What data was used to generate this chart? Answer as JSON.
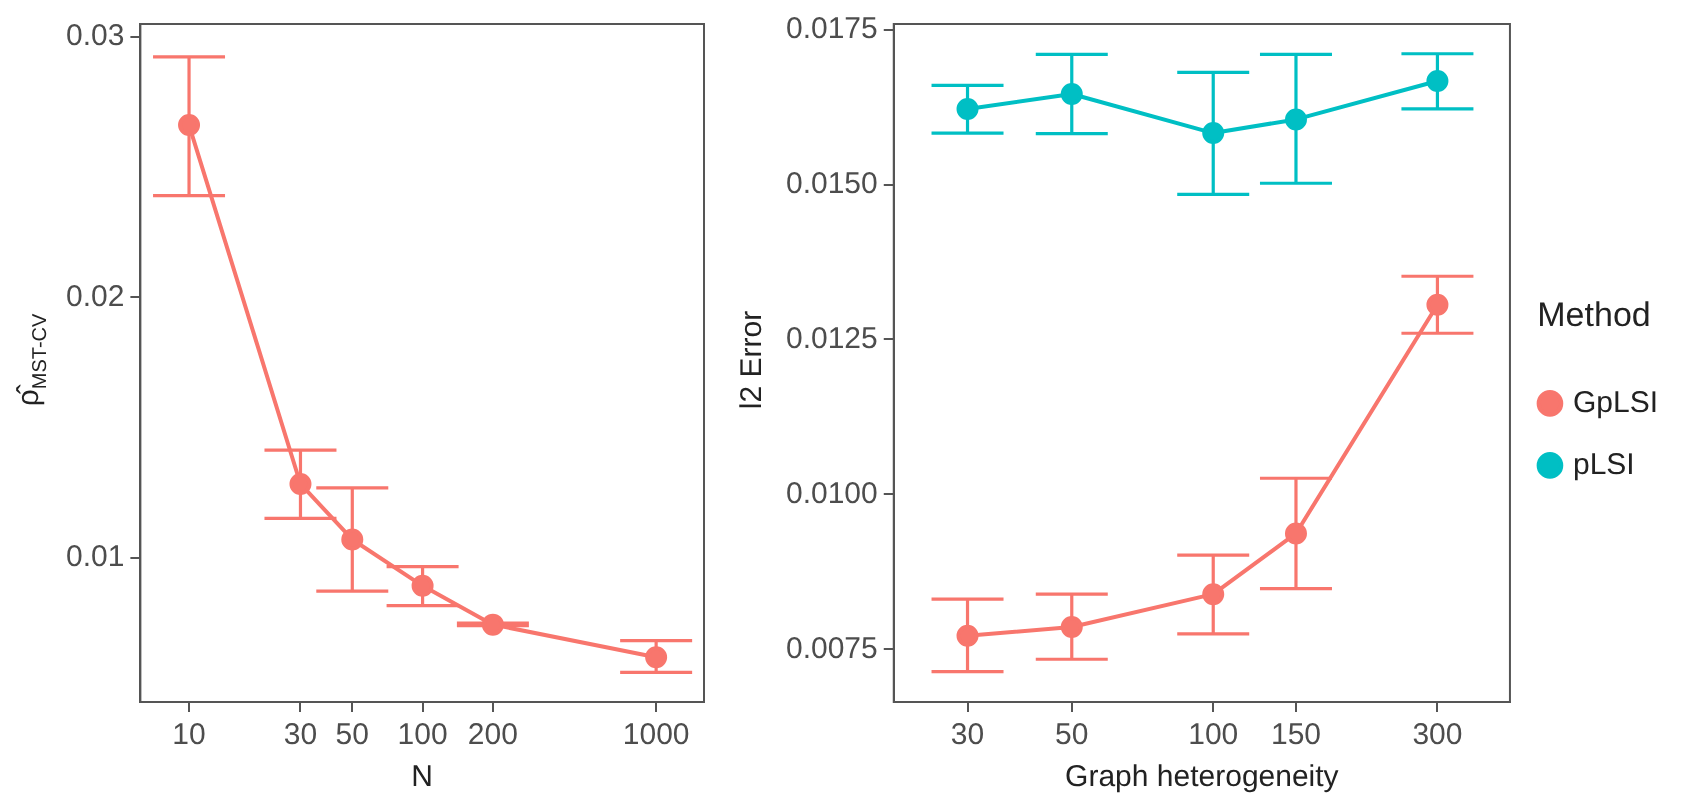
{
  "chart_data": [
    {
      "type": "line",
      "xlabel": "N",
      "ylabel": "ρ̂$_{MST-CV}$",
      "log": "x",
      "marker": "circle",
      "line_style": "solid",
      "x": [
        10,
        30,
        50,
        100,
        200,
        1000
      ],
      "xlim": [
        6.19,
        1603
      ],
      "xticks": [
        10,
        30,
        50,
        100,
        200,
        1000
      ],
      "ylim": [
        0.00447,
        0.0305
      ],
      "yticks": [
        0.01,
        0.02,
        0.03
      ],
      "series": [
        {
          "color": "#f8766d",
          "values": [
            0.02662,
            0.01284,
            0.01071,
            0.00893,
            0.00744,
            0.00619
          ],
          "errors": [
            [
              0.02391,
              0.02924
            ],
            [
              0.01152,
              0.01414
            ],
            [
              0.00873,
              0.01269
            ],
            [
              0.00817,
              0.00967
            ],
            [
              0.0074,
              0.0075
            ],
            [
              0.00561,
              0.00683
            ]
          ]
        }
      ]
    },
    {
      "type": "line",
      "xlabel": "Graph heterogeneity",
      "ylabel": "l2 Error",
      "legend_title": "Method",
      "legend": "right",
      "log": "x",
      "marker": "circle",
      "line_style": "solid",
      "x": [
        30,
        50,
        100,
        150,
        300
      ],
      "xlim": [
        20.9,
        428
      ],
      "xticks": [
        30,
        50,
        100,
        150,
        300
      ],
      "ylim": [
        0.00665,
        0.01759
      ],
      "yticks": [
        0.0075,
        {
          "value": 0.01,
          "label": "0.0100"
        },
        0.0125,
        {
          "value": 0.015,
          "label": "0.0150"
        },
        0.0175
      ],
      "series": [
        {
          "name": "GpLSI",
          "color": "#f8766d",
          "values": [
            0.00772,
            0.00786,
            0.00839,
            0.00937,
            0.01306
          ],
          "errors": [
            [
              0.00714,
              0.00831
            ],
            [
              0.00734,
              0.00839
            ],
            [
              0.00775,
              0.00902
            ],
            [
              0.00848,
              0.01026
            ],
            [
              0.0126,
              0.01352
            ]
          ]
        },
        {
          "name": "pLSI",
          "color": "#00bfc4",
          "values": [
            0.01622,
            0.01646,
            0.01583,
            0.01605,
            0.01667
          ],
          "errors": [
            [
              0.01583,
              0.0166
            ],
            [
              0.01582,
              0.0171
            ],
            [
              0.01484,
              0.01681
            ],
            [
              0.01502,
              0.0171
            ],
            [
              0.01622,
              0.01711
            ]
          ]
        }
      ]
    }
  ]
}
